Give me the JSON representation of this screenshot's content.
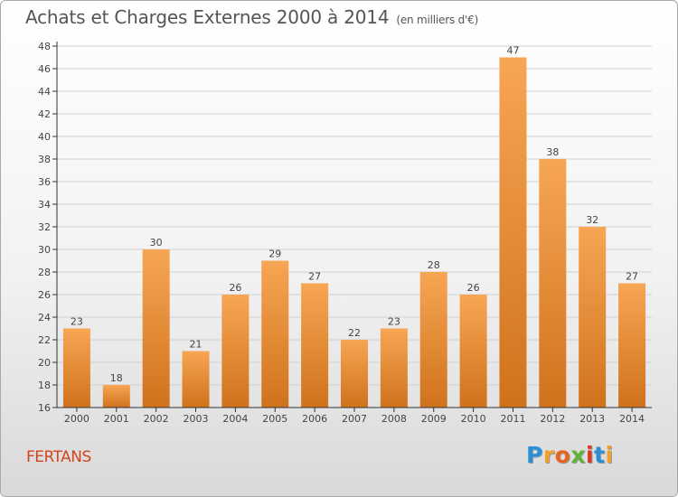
{
  "title": "Achats et Charges Externes 2000 à 2014",
  "subtitle": "(en milliers d'€)",
  "commune": "FERTANS",
  "logo": {
    "text": "Proxiti",
    "letters": [
      {
        "ch": "P",
        "color": "#2a8fd9"
      },
      {
        "ch": "r",
        "color": "#f0a02a"
      },
      {
        "ch": "o",
        "color": "#e8641e"
      },
      {
        "ch": "x",
        "color": "#5fb336"
      },
      {
        "ch": "i",
        "color": "#d83a2a"
      },
      {
        "ch": "t",
        "color": "#2a8fd9"
      },
      {
        "ch": "i",
        "color": "#f0a02a"
      }
    ]
  },
  "colors": {
    "bar_top": "#f7a654",
    "bar_bottom": "#d0721c",
    "axis": "#333333",
    "grid": "#d0d0d0",
    "text": "#444444"
  },
  "chart_data": {
    "type": "bar",
    "title": "Achats et Charges Externes 2000 à 2014",
    "subtitle": "(en milliers d'€)",
    "categories": [
      "2000",
      "2001",
      "2002",
      "2003",
      "2004",
      "2005",
      "2006",
      "2007",
      "2008",
      "2009",
      "2010",
      "2011",
      "2012",
      "2013",
      "2014"
    ],
    "values": [
      23,
      18,
      30,
      21,
      26,
      29,
      27,
      22,
      23,
      28,
      26,
      47,
      38,
      32,
      27
    ],
    "ylim": [
      16,
      48
    ],
    "yticks": [
      16,
      18,
      20,
      22,
      24,
      26,
      28,
      30,
      32,
      34,
      36,
      38,
      40,
      42,
      44,
      46,
      48
    ],
    "grid": true,
    "data_labels": true
  }
}
